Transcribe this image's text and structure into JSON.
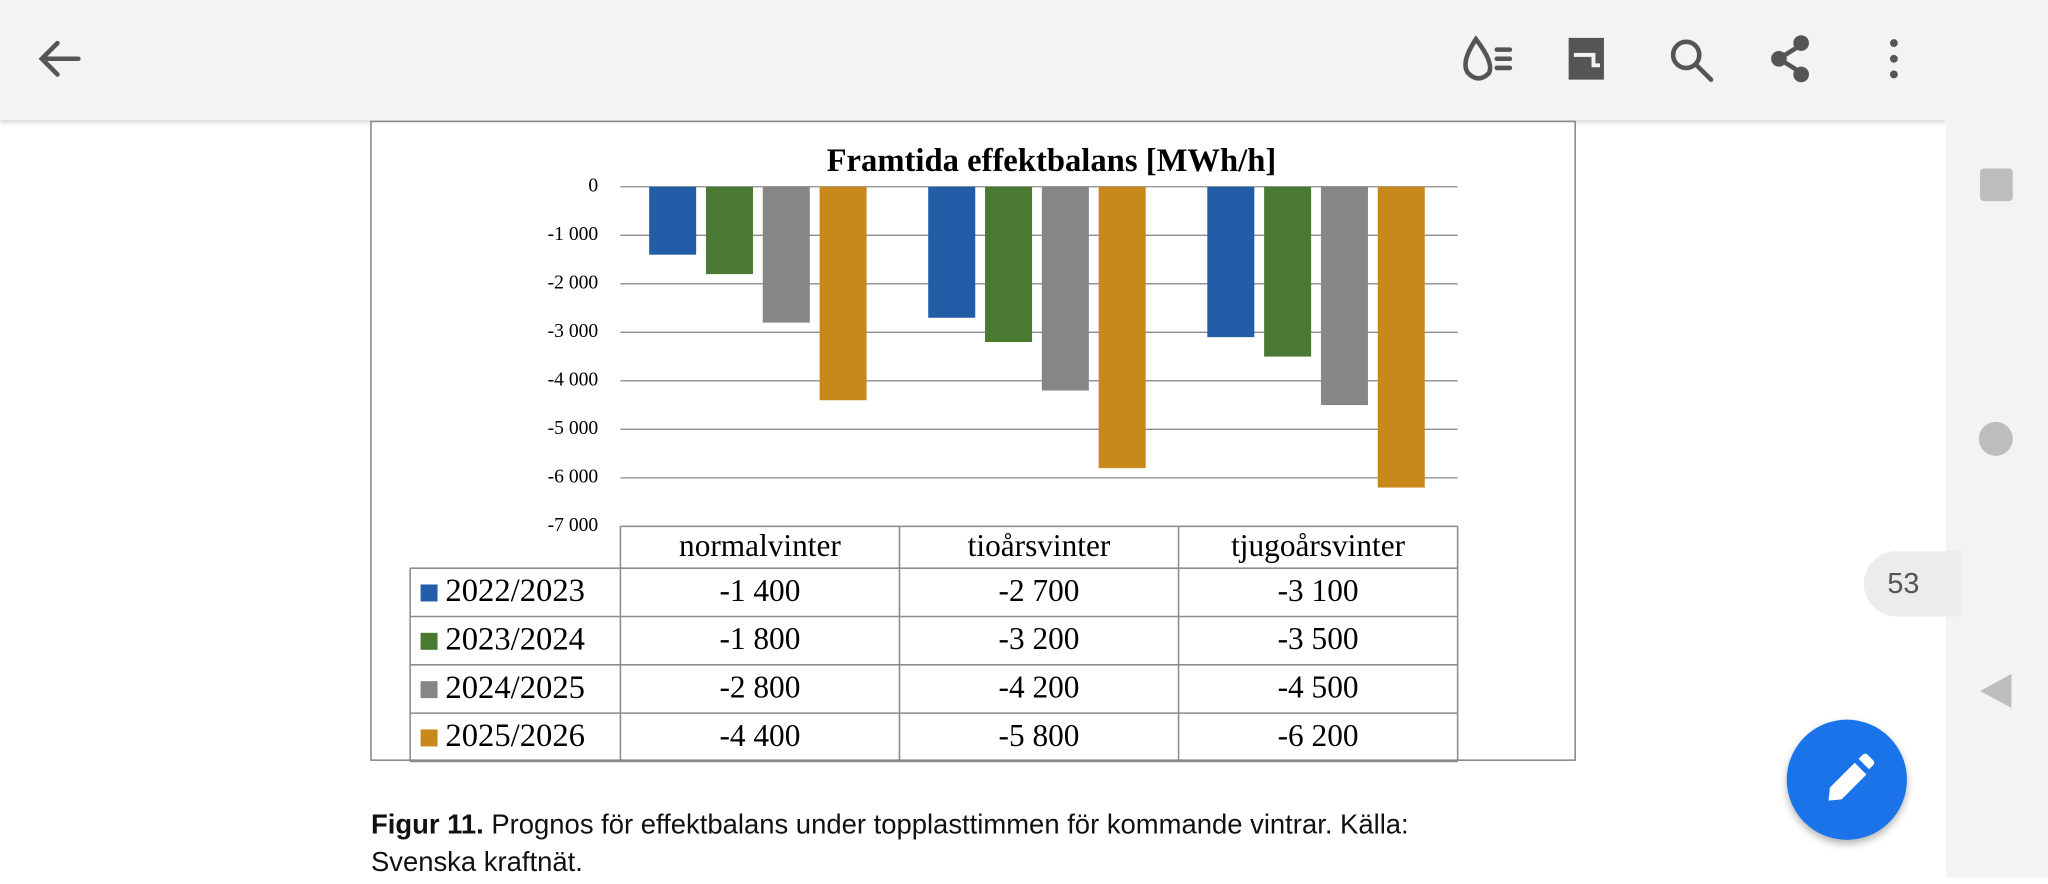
{
  "viewer": {
    "page_number": "53"
  },
  "chart_data": {
    "type": "bar",
    "title": "Framtida effektbalans [MWh/h]",
    "categories": [
      "normalvinter",
      "tioårsvinter",
      "tjugoårsvinter"
    ],
    "series": [
      {
        "name": "2022/2023",
        "color": "#225ea8",
        "values": [
          -1400,
          -2700,
          -3100
        ],
        "value_labels": [
          "-1 400",
          "-2 700",
          "-3 100"
        ]
      },
      {
        "name": "2023/2024",
        "color": "#4a7a31",
        "values": [
          -1800,
          -3200,
          -3500
        ],
        "value_labels": [
          "-1 800",
          "-3 200",
          "-3 500"
        ]
      },
      {
        "name": "2024/2025",
        "color": "#868686",
        "values": [
          -2800,
          -4200,
          -4500
        ],
        "value_labels": [
          "-2 800",
          "-4 200",
          "-4 500"
        ]
      },
      {
        "name": "2025/2026",
        "color": "#c8881a",
        "values": [
          -4400,
          -5800,
          -6200
        ],
        "value_labels": [
          "-4 400",
          "-5 800",
          "-6 200"
        ]
      }
    ],
    "ylim": [
      -7000,
      0
    ],
    "yticks": [
      0,
      {
        "value": -1000,
        "label": "-1 000"
      },
      {
        "value": -2000,
        "label": "-2 000"
      },
      {
        "value": -3000,
        "label": "-3 000"
      },
      {
        "value": -4000,
        "label": "-4 000"
      },
      {
        "value": -5000,
        "label": "-5 000"
      },
      {
        "value": -6000,
        "label": "-6 000"
      },
      {
        "value": -7000,
        "label": "-7 000"
      }
    ],
    "grid": true
  },
  "caption": {
    "label": "Figur 11.",
    "text": "Prognos för effektbalans under topplasttimmen för kommande vintrar. Källa: Svenska kraftnät."
  }
}
